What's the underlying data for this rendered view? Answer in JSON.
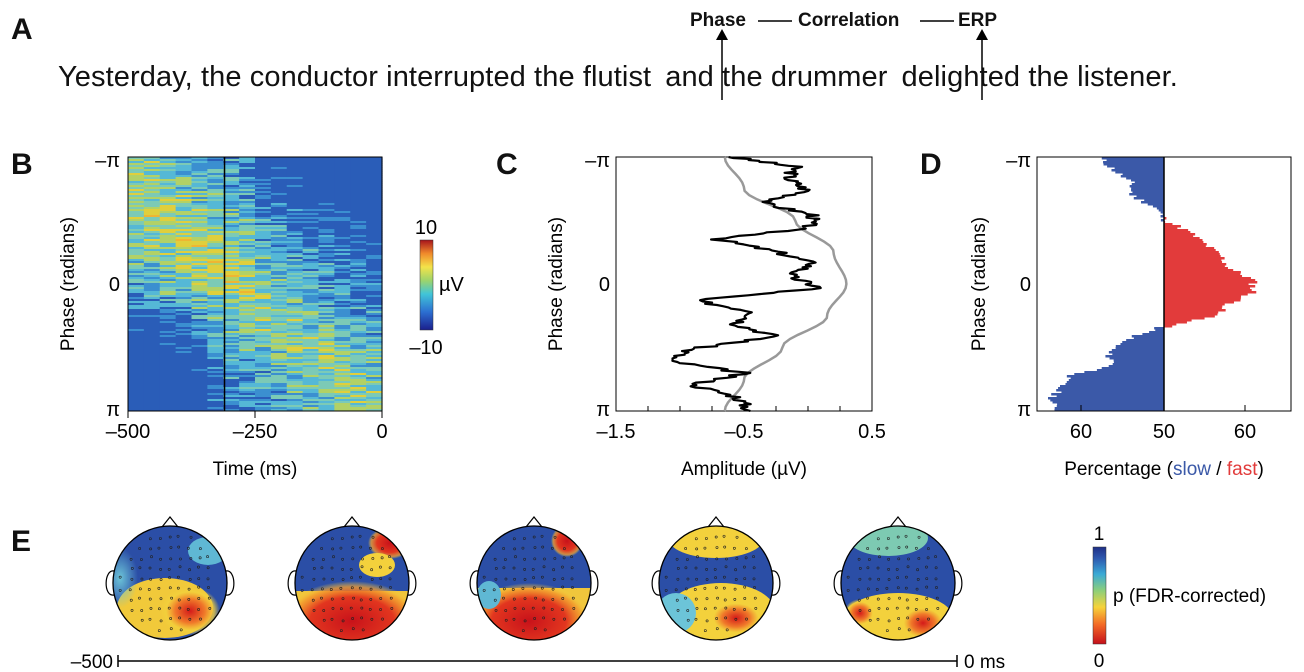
{
  "panels": {
    "a": "A",
    "b": "B",
    "c": "C",
    "d": "D",
    "e": "E"
  },
  "panel_a": {
    "sentence": "Yesterday, the conductor interrupted the flutist|and the drummer|delighted the listener.",
    "sentence_parts": [
      "Yesterday, the conductor interrupted the flutist",
      "and the drummer",
      "delighted the listener."
    ],
    "chain": [
      "Phase",
      "Correlation",
      "ERP"
    ]
  },
  "colorbar_uv": {
    "max": "10",
    "unit": "µV",
    "min": "–10"
  },
  "colorbar_p": {
    "max": "1",
    "label": "p (FDR-corrected)",
    "min": "0"
  },
  "timeline_e": {
    "start": "–500",
    "end": "0 ms"
  },
  "xlabel_d_parts": {
    "prefix": "Percentage (",
    "slow": "slow",
    "sep": " / ",
    "fast": "fast",
    "suffix": ")"
  },
  "chart_data": [
    {
      "type": "heatmap",
      "panel": "B",
      "xlabel": "Time (ms)",
      "ylabel": "Phase (radians)",
      "xlim": [
        -500,
        0
      ],
      "xticks": [
        "–500",
        "–250",
        "0"
      ],
      "ylim": [
        "-π",
        "π"
      ],
      "yticks": [
        "–π",
        "0",
        "π"
      ],
      "vline_x": -310,
      "colormap": "jet",
      "clim": [
        -10,
        10
      ]
    },
    {
      "type": "line",
      "panel": "C",
      "xlabel": "Amplitude (µV)",
      "ylabel": "Phase (radians)",
      "xlim": [
        -1.5,
        0.5
      ],
      "xticks": [
        "–1.5",
        "–0.5",
        "0.5"
      ],
      "yticks": [
        "–π",
        "0",
        "π"
      ],
      "series": [
        {
          "color": "#000000",
          "phase": [
            -3.14,
            -2.9,
            -2.6,
            -2.3,
            -2.0,
            -1.7,
            -1.4,
            -1.1,
            -0.8,
            -0.5,
            -0.2,
            0.1,
            0.4,
            0.7,
            1.0,
            1.3,
            1.6,
            1.9,
            2.2,
            2.5,
            2.8,
            3.14
          ],
          "amplitude": [
            -0.6,
            -0.1,
            -0.15,
            0.0,
            -0.35,
            0.05,
            0.0,
            -0.7,
            -0.25,
            0.05,
            -0.15,
            0.1,
            -0.9,
            -0.4,
            -0.55,
            -0.25,
            -0.9,
            -1.1,
            -0.5,
            -0.9,
            -0.55,
            -0.45
          ]
        },
        {
          "color": "#999999",
          "phase": [
            -3.14,
            -2.36,
            -1.57,
            -0.79,
            0,
            0.79,
            1.57,
            2.36,
            3.14
          ],
          "amplitude": [
            -0.65,
            -0.5,
            -0.1,
            0.2,
            0.3,
            0.15,
            -0.2,
            -0.5,
            -0.65
          ]
        }
      ]
    },
    {
      "type": "bar",
      "panel": "D",
      "xlabel": "Percentage (slow / fast)",
      "ylabel": "Phase (radians)",
      "xticks": [
        "60",
        "50",
        "60"
      ],
      "yticks": [
        "–π",
        "0",
        "π"
      ],
      "center": 50,
      "colors": {
        "slow": "#3b59a8",
        "fast": "#e23b3b"
      },
      "phase": [
        -3.14,
        -2.8,
        -2.5,
        -2.2,
        -1.9,
        -1.6,
        -1.3,
        -1.0,
        -0.7,
        -0.4,
        -0.1,
        0.2,
        0.5,
        0.8,
        1.1,
        1.4,
        1.7,
        2.0,
        2.3,
        2.6,
        2.9,
        3.14
      ],
      "percent_fast": [
        42,
        44,
        46,
        46,
        49,
        50,
        53,
        55,
        57,
        58,
        61,
        61,
        58,
        56,
        49,
        45,
        43,
        44,
        38,
        37,
        36,
        37
      ]
    }
  ]
}
